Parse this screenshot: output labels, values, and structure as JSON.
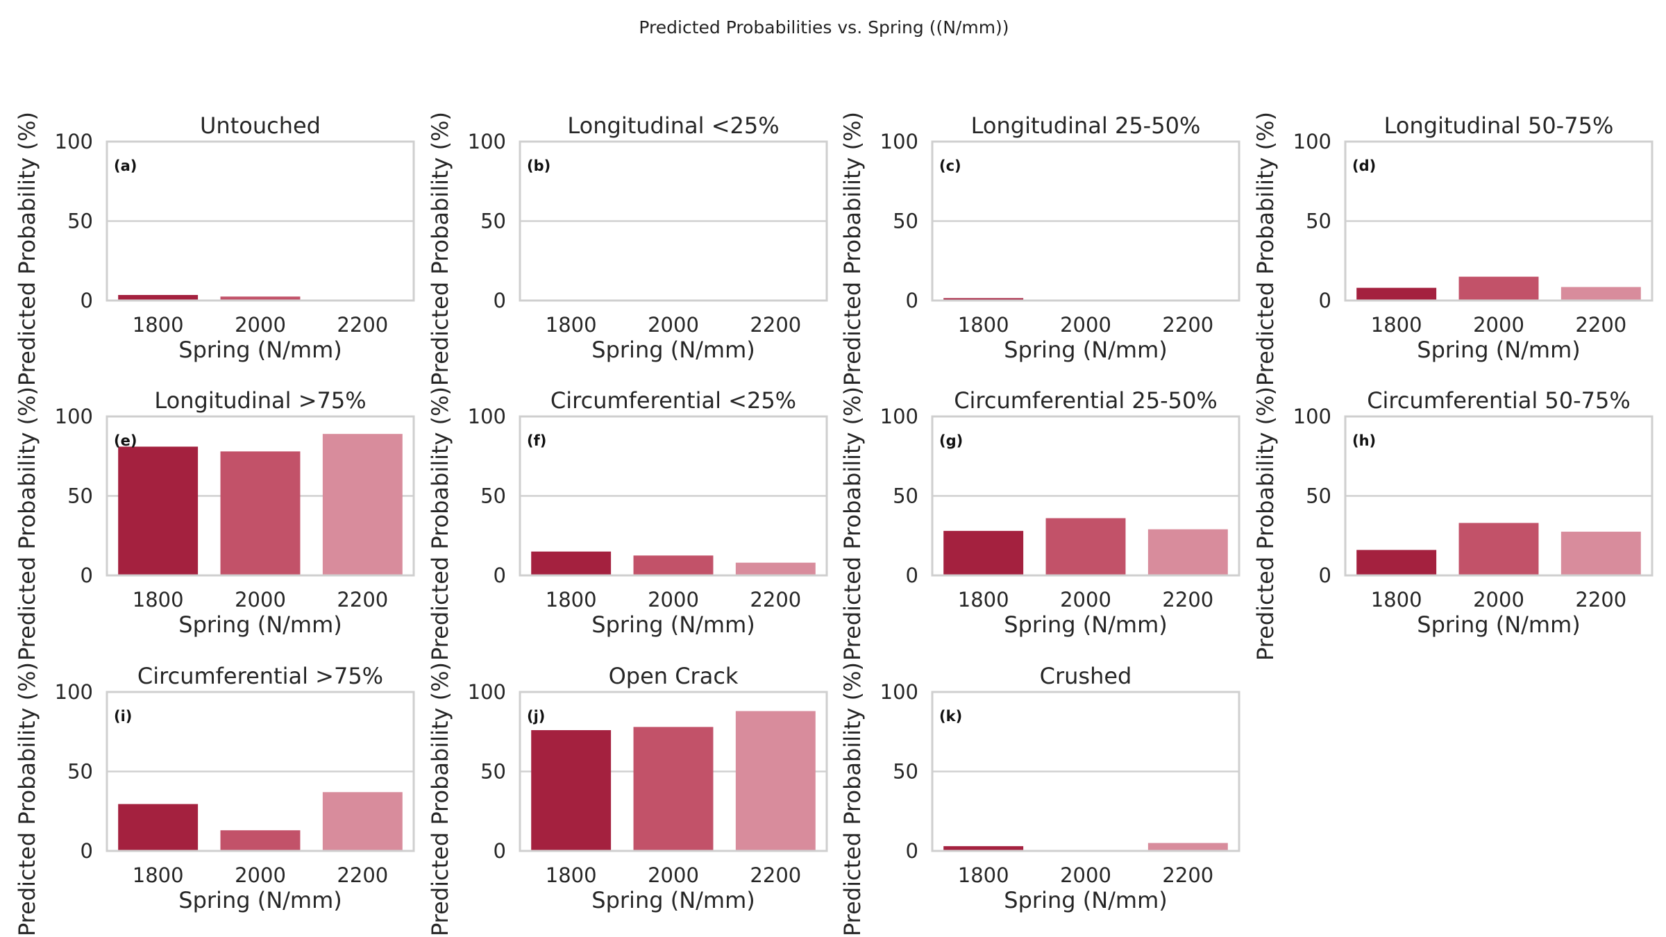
{
  "figure_title": "Predicted Probabilities vs. Spring ((N/mm))",
  "colors": {
    "series": [
      "#a4213f",
      "#c25269",
      "#d88c9c"
    ],
    "grid": "#d0d0d0",
    "frame": "#cfcfcf",
    "text": "#262626"
  },
  "chart_data": [
    {
      "type": "bar",
      "letter": "(a)",
      "title": "Untouched",
      "xlabel": "Spring (N/mm)",
      "ylabel": "Predicted Probability (%)",
      "categories": [
        "1800",
        "2000",
        "2200"
      ],
      "values": [
        3.5,
        2.5,
        0.3
      ],
      "ylim": [
        0,
        100
      ],
      "yticks": [
        "0",
        "50",
        "100"
      ]
    },
    {
      "type": "bar",
      "letter": "(b)",
      "title": "Longitudinal <25%",
      "xlabel": "Spring (N/mm)",
      "ylabel": "Predicted Probability (%)",
      "categories": [
        "1800",
        "2000",
        "2200"
      ],
      "values": [
        0.2,
        0.2,
        0.2
      ],
      "ylim": [
        0,
        100
      ],
      "yticks": [
        "0",
        "50",
        "100"
      ]
    },
    {
      "type": "bar",
      "letter": "(c)",
      "title": "Longitudinal 25-50%",
      "xlabel": "Spring (N/mm)",
      "ylabel": "Predicted Probability (%)",
      "categories": [
        "1800",
        "2000",
        "2200"
      ],
      "values": [
        1.5,
        0.3,
        0.2
      ],
      "ylim": [
        0,
        100
      ],
      "yticks": [
        "0",
        "50",
        "100"
      ]
    },
    {
      "type": "bar",
      "letter": "(d)",
      "title": "Longitudinal 50-75%",
      "xlabel": "Spring (N/mm)",
      "ylabel": "Predicted Probability (%)",
      "categories": [
        "1800",
        "2000",
        "2200"
      ],
      "values": [
        8,
        15,
        8.5
      ],
      "ylim": [
        0,
        100
      ],
      "yticks": [
        "0",
        "50",
        "100"
      ]
    },
    {
      "type": "bar",
      "letter": "(e)",
      "title": "Longitudinal >75%",
      "xlabel": "Spring (N/mm)",
      "ylabel": "Predicted Probability (%)",
      "categories": [
        "1800",
        "2000",
        "2200"
      ],
      "values": [
        81,
        78,
        89
      ],
      "ylim": [
        0,
        100
      ],
      "yticks": [
        "0",
        "50",
        "100"
      ]
    },
    {
      "type": "bar",
      "letter": "(f)",
      "title": "Circumferential <25%",
      "xlabel": "Spring (N/mm)",
      "ylabel": "Predicted Probability (%)",
      "categories": [
        "1800",
        "2000",
        "2200"
      ],
      "values": [
        15,
        12.5,
        8
      ],
      "ylim": [
        0,
        100
      ],
      "yticks": [
        "0",
        "50",
        "100"
      ]
    },
    {
      "type": "bar",
      "letter": "(g)",
      "title": "Circumferential 25-50%",
      "xlabel": "Spring (N/mm)",
      "ylabel": "Predicted Probability (%)",
      "categories": [
        "1800",
        "2000",
        "2200"
      ],
      "values": [
        28,
        36,
        29
      ],
      "ylim": [
        0,
        100
      ],
      "yticks": [
        "0",
        "50",
        "100"
      ]
    },
    {
      "type": "bar",
      "letter": "(h)",
      "title": "Circumferential 50-75%",
      "xlabel": "Spring (N/mm)",
      "ylabel": "Predicted Probability (%)",
      "categories": [
        "1800",
        "2000",
        "2200"
      ],
      "values": [
        16,
        33,
        27.5
      ],
      "ylim": [
        0,
        100
      ],
      "yticks": [
        "0",
        "50",
        "100"
      ]
    },
    {
      "type": "bar",
      "letter": "(i)",
      "title": "Circumferential >75%",
      "xlabel": "Spring (N/mm)",
      "ylabel": "Predicted Probability (%)",
      "categories": [
        "1800",
        "2000",
        "2200"
      ],
      "values": [
        29.5,
        13,
        37
      ],
      "ylim": [
        0,
        100
      ],
      "yticks": [
        "0",
        "50",
        "100"
      ]
    },
    {
      "type": "bar",
      "letter": "(j)",
      "title": "Open Crack",
      "xlabel": "Spring (N/mm)",
      "ylabel": "Predicted Probability (%)",
      "categories": [
        "1800",
        "2000",
        "2200"
      ],
      "values": [
        76,
        78,
        88
      ],
      "ylim": [
        0,
        100
      ],
      "yticks": [
        "0",
        "50",
        "100"
      ]
    },
    {
      "type": "bar",
      "letter": "(k)",
      "title": "Crushed",
      "xlabel": "Spring (N/mm)",
      "ylabel": "Predicted Probability (%)",
      "categories": [
        "1800",
        "2000",
        "2200"
      ],
      "values": [
        3,
        0.2,
        5
      ],
      "ylim": [
        0,
        100
      ],
      "yticks": [
        "0",
        "50",
        "100"
      ]
    }
  ]
}
